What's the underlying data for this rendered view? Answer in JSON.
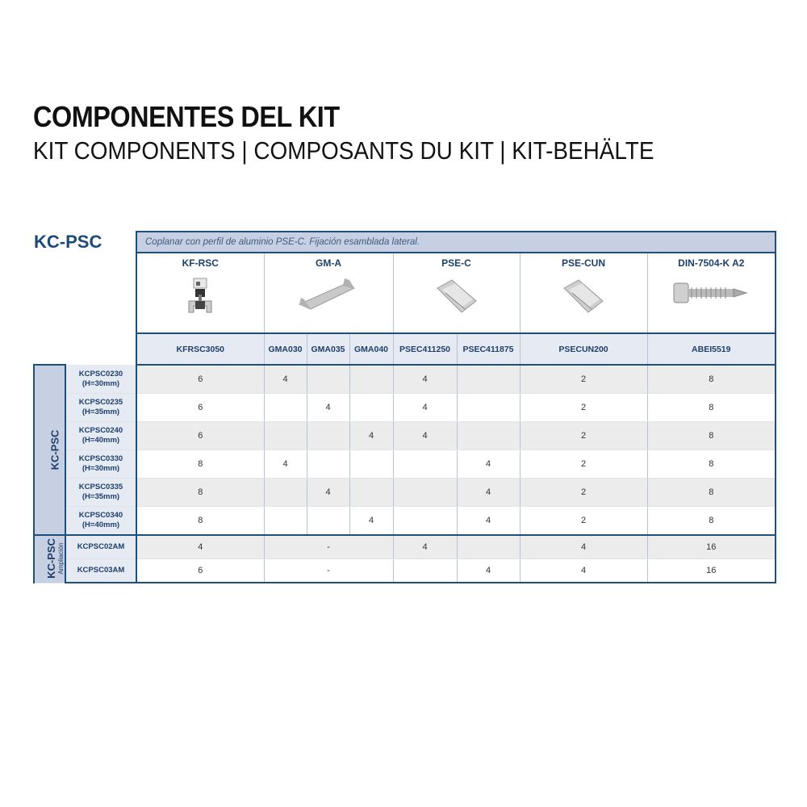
{
  "header": {
    "title": "COMPONENTES DEL KIT",
    "subtitle": "KIT COMPONENTS | COMPOSANTS DU KIT | KIT-BEHÄLTE"
  },
  "kit_label": "KC-PSC",
  "table": {
    "caption": "Coplanar con perfil de aluminio PSE-C. Fijación esamblada lateral.",
    "products": [
      {
        "name": "KF-RSC",
        "image": "clamp-image"
      },
      {
        "name": "GM-A",
        "image": "rail-connector-image"
      },
      {
        "name": "PSE-C",
        "image": "aluminium-profile-image"
      },
      {
        "name": "PSE-CUN",
        "image": "aluminium-profile-union-image"
      },
      {
        "name": "DIN-7504-K A2",
        "image": "self-drilling-screw-image"
      }
    ],
    "codes": [
      "KFRSC3050",
      "GMA030",
      "GMA035",
      "GMA040",
      "PSEC411250",
      "PSEC411875",
      "PSECUN200",
      "ABEI5519"
    ],
    "groups": [
      {
        "label": "KC-PSC",
        "sublabel": "",
        "rows": [
          {
            "model": "KCPSC0230",
            "height": "(H=30mm)",
            "values": [
              "6",
              "4",
              "",
              "",
              "4",
              "",
              "2",
              "8"
            ]
          },
          {
            "model": "KCPSC0235",
            "height": "(H=35mm)",
            "values": [
              "6",
              "",
              "4",
              "",
              "4",
              "",
              "2",
              "8"
            ]
          },
          {
            "model": "KCPSC0240",
            "height": "(H=40mm)",
            "values": [
              "6",
              "",
              "",
              "4",
              "4",
              "",
              "2",
              "8"
            ]
          },
          {
            "model": "KCPSC0330",
            "height": "(H=30mm)",
            "values": [
              "8",
              "4",
              "",
              "",
              "",
              "4",
              "2",
              "8"
            ]
          },
          {
            "model": "KCPSC0335",
            "height": "(H=35mm)",
            "values": [
              "8",
              "",
              "4",
              "",
              "",
              "4",
              "2",
              "8"
            ]
          },
          {
            "model": "KCPSC0340",
            "height": "(H=40mm)",
            "values": [
              "8",
              "",
              "",
              "4",
              "",
              "4",
              "2",
              "8"
            ]
          }
        ]
      },
      {
        "label": "KC-PSC",
        "sublabel": "Ampliación",
        "rows": [
          {
            "model": "KCPSC02AM",
            "height": "",
            "values": [
              "4",
              "-",
              "4",
              "",
              "4",
              "16"
            ]
          },
          {
            "model": "KCPSC03AM",
            "height": "",
            "values": [
              "6",
              "-",
              "",
              "4",
              "4",
              "16"
            ]
          }
        ]
      }
    ]
  },
  "colors": {
    "accent": "#1f4e79",
    "header_bg": "#c7d0e2",
    "label_bg": "#e5eaf3",
    "stripe": "#ececec"
  }
}
